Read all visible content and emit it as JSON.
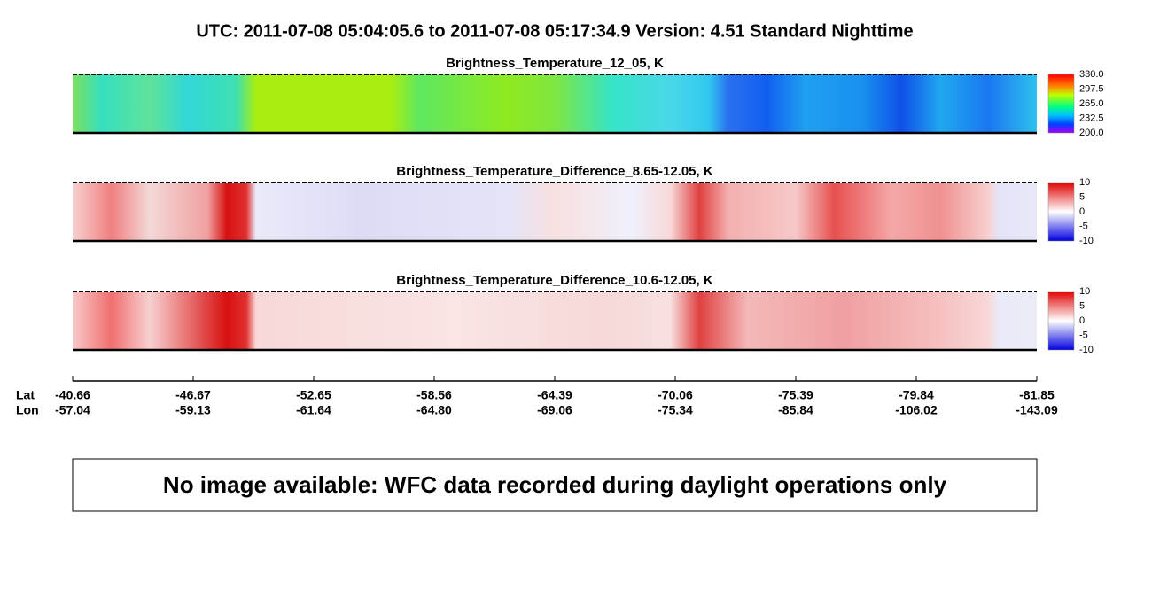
{
  "header": {
    "title": "UTC:  2011-07-08   05:04:05.6  to  2011-07-08   05:17:34.9    Version: 4.51  Standard Nighttime"
  },
  "panels": [
    {
      "title": "Brightness_Temperature_12_05, K",
      "colorbar": [
        "330.0",
        "297.5",
        "265.0",
        "232.5",
        "200.0"
      ]
    },
    {
      "title": "Brightness_Temperature_Difference_8.65-12.05, K",
      "colorbar": [
        "10",
        "5",
        "0",
        "-5",
        "-10"
      ]
    },
    {
      "title": "Brightness_Temperature_Difference_10.6-12.05, K",
      "colorbar": [
        "10",
        "5",
        "0",
        "-5",
        "-10"
      ]
    }
  ],
  "axis": {
    "lat_label": "Lat",
    "lon_label": "Lon",
    "lat": [
      "-40.66",
      "-46.67",
      "-52.65",
      "-58.56",
      "-64.39",
      "-70.06",
      "-75.39",
      "-79.84",
      "-81.85"
    ],
    "lon": [
      "-57.04",
      "-59.13",
      "-61.64",
      "-64.80",
      "-69.06",
      "-75.34",
      "-85.84",
      "-106.02",
      "-143.09"
    ]
  },
  "message": "No image available: WFC data recorded during daylight operations only"
}
